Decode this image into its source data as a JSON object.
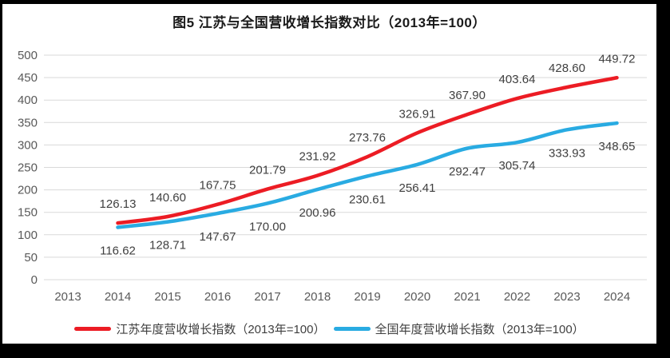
{
  "title": "图5  江苏与全国营收增长指数对比（2013年=100）",
  "colors": {
    "frame": "#000000",
    "background": "#ffffff",
    "jiangsu_line": "#ec1c24",
    "national_line": "#29abe2",
    "gridline": "#d9d9d9",
    "axis_text": "#595959",
    "data_label_text": "#3f3f3f",
    "title_text": "#1a1a1a"
  },
  "chart_data": {
    "type": "line",
    "title": "图5  江苏与全国营收增长指数对比（2013年=100）",
    "categories": [
      "2013",
      "2014",
      "2015",
      "2016",
      "2017",
      "2018",
      "2019",
      "2020",
      "2021",
      "2022",
      "2023",
      "2024"
    ],
    "series": [
      {
        "name": "江苏年度营收增长指数（2013年=100）",
        "color": "#ec1c24",
        "start_index": 1,
        "label_position": "above",
        "values": [
          126.13,
          140.6,
          167.75,
          201.79,
          231.92,
          273.76,
          326.91,
          367.9,
          403.64,
          428.6,
          449.72
        ]
      },
      {
        "name": "全国年度营收增长指数（2013年=100）",
        "color": "#29abe2",
        "start_index": 1,
        "label_position": "below",
        "values": [
          116.62,
          128.71,
          147.67,
          170.0,
          200.96,
          230.61,
          256.41,
          292.47,
          305.74,
          333.93,
          348.65
        ]
      }
    ],
    "xlabel": "",
    "ylabel": "",
    "ylim": [
      0,
      500
    ],
    "yticks": [
      0,
      50,
      100,
      150,
      200,
      250,
      300,
      350,
      400,
      450,
      500
    ],
    "grid": true,
    "data_labels": true,
    "data_label_decimals": 2,
    "legend_position": "bottom"
  }
}
